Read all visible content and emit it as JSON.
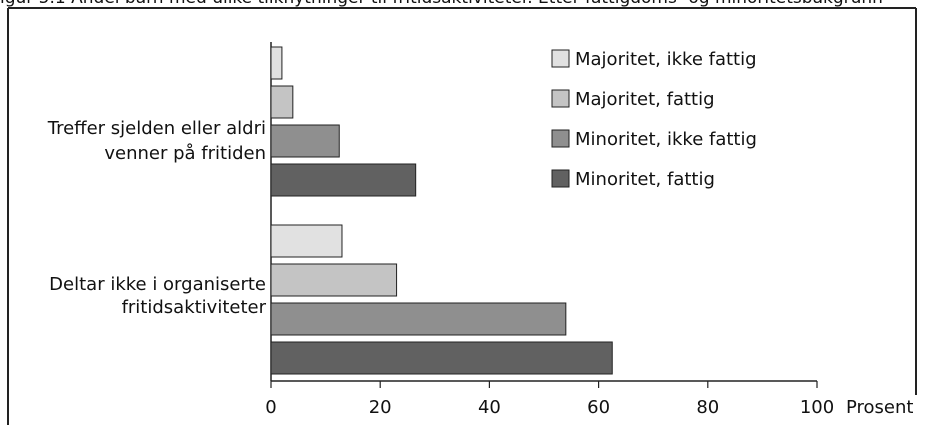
{
  "chart_data": {
    "type": "bar",
    "orientation": "horizontal",
    "categories": [
      [
        "Treffer sjelden eller aldri",
        "venner på fritiden"
      ],
      [
        "Deltar ikke i organiserte",
        "fritidsaktiviteter"
      ]
    ],
    "series": [
      {
        "name": "Majoritet, ikke fattig",
        "values": [
          2,
          13
        ],
        "color": "#e1e1e1"
      },
      {
        "name": "Majoritet, fattig",
        "values": [
          4,
          23
        ],
        "color": "#c4c4c4"
      },
      {
        "name": "Minoritet, ikke fattig",
        "values": [
          12.5,
          54
        ],
        "color": "#8f8f8f"
      },
      {
        "name": "Minoritet, fattig",
        "values": [
          26.5,
          62.5
        ],
        "color": "#616161"
      }
    ],
    "xticks": [
      "0",
      "20",
      "40",
      "60",
      "80",
      "100"
    ],
    "xlim": [
      0,
      100
    ],
    "xlabel": "Prosent",
    "ylabel": "",
    "title": "",
    "legend": "top-right",
    "grid": false
  },
  "cropped_caption": "igur 5.1 Andel barn med ulike tilknytninger til fritidsaktiviteter. Etter fattigdoms- og minoritetsbakgrunn"
}
